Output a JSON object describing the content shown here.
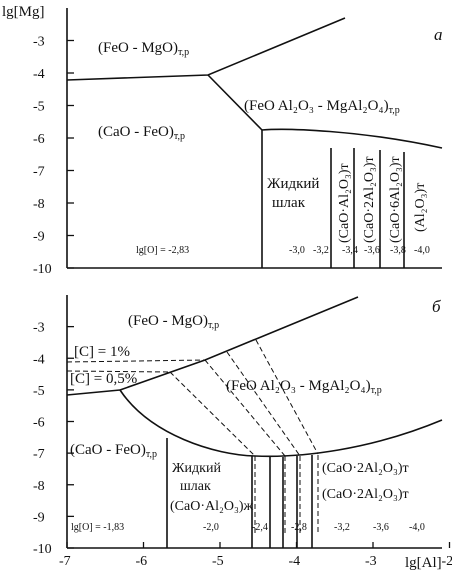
{
  "chart_data": [
    {
      "type": "diagram",
      "panel_label": "a",
      "ylabel": "lg[Mg]",
      "ylim": [
        -10,
        -2
      ],
      "xlim": [
        -7,
        -1.5
      ],
      "y_ticks": [
        "-3",
        "-4",
        "-5",
        "-6",
        "-7",
        "-8",
        "-9",
        "-10"
      ],
      "regions": [
        {
          "text": "(FeO - MgO)",
          "sub": "т,р"
        },
        {
          "text": "(FeO Al₂O₃ - MgAl₂O₄)",
          "sub": "т,р"
        },
        {
          "text": "(CaO - FeO)",
          "sub": "т,р"
        }
      ],
      "liquid_slag": [
        "Жидкий",
        "шлак"
      ],
      "phases": [
        "(CaO·Al₂O₃)т",
        "(CaO·2Al₂O₃)т",
        "(CaO·6Al₂O₃)т",
        "(Al₂O₃)т"
      ],
      "lgO_label": "lg[O] = -2,83",
      "lgO_values": [
        "-3,0",
        "-3,2",
        "-3,4",
        "-3,6",
        "-3,8",
        "-4,0"
      ]
    },
    {
      "type": "diagram",
      "panel_label": "б",
      "ylabel": "",
      "xlabel": "lg[Al]",
      "ylim": [
        -10,
        -2
      ],
      "xlim": [
        -7,
        -1.5
      ],
      "y_ticks": [
        "-3",
        "-4",
        "-5",
        "-6",
        "-7",
        "-8",
        "-9",
        "-10"
      ],
      "x_ticks": [
        "-7",
        "-6",
        "-5",
        "-4",
        "-3",
        "-2"
      ],
      "regions": [
        {
          "text": "(FeO - MgO)",
          "sub": "т,р"
        },
        {
          "text": "(FeO Al₂O₃ - MgAl₂O₄)",
          "sub": "т,р"
        },
        {
          "text": "(CaO - FeO)",
          "sub": "т,р"
        }
      ],
      "carbon_levels": [
        "[C] = 1%",
        "[C] = 0,5%"
      ],
      "liquid_slag": [
        "Жидкий",
        "шлак"
      ],
      "liquid_slag_phase": "(CaO·Al₂O₃)ж",
      "phases": [
        "(CaO·2Al₂O₃)т",
        "(CaO·2Al₂O₃)т"
      ],
      "lgO_label": "lg[O] = -1,83",
      "lgO_values": [
        "-2,0",
        "-2,4",
        "-2,8",
        "-3,2",
        "-3,6",
        "-4,0"
      ]
    }
  ]
}
